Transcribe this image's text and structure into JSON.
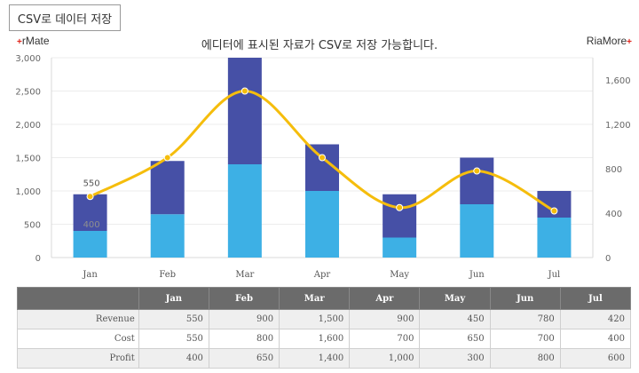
{
  "toolbar": {
    "csv_button_label": "CSV로 데이터 저장"
  },
  "brand": {
    "left_text": "rMate",
    "right_text": "RiaMore",
    "plus_glyph": "+",
    "plus_color": "#e0251b"
  },
  "chart_title": "에디터에 표시된 자료가 CSV로 저장 가능합니다.",
  "chart_data": {
    "type": "bar",
    "categories": [
      "Jan",
      "Feb",
      "Mar",
      "Apr",
      "May",
      "Jun",
      "Jul"
    ],
    "stacked": true,
    "series": [
      {
        "name": "Profit",
        "axis": "left",
        "type": "bar",
        "color": "#3db0e5",
        "values": [
          400,
          650,
          1400,
          1000,
          300,
          800,
          600
        ]
      },
      {
        "name": "Cost",
        "axis": "left",
        "type": "bar",
        "color": "#4650a6",
        "values": [
          550,
          800,
          1600,
          700,
          650,
          700,
          400
        ]
      },
      {
        "name": "Revenue",
        "axis": "right",
        "type": "line",
        "curve": "smooth",
        "color": "#f5bd0c",
        "values": [
          550,
          900,
          1500,
          900,
          450,
          780,
          420
        ]
      }
    ],
    "y_left": {
      "min": 0,
      "max": 3000,
      "ticks": [
        0,
        500,
        1000,
        1500,
        2000,
        2500,
        3000
      ],
      "tick_labels": [
        "0",
        "500",
        "1,000",
        "1,500",
        "2,000",
        "2,500",
        "3,000"
      ]
    },
    "y_right": {
      "min": 0,
      "max": 1800,
      "ticks": [
        0,
        400,
        800,
        1200,
        1600
      ],
      "tick_labels": [
        "0",
        "400",
        "800",
        "1,200",
        "1,600"
      ]
    },
    "annotations": [
      {
        "category": "Jan",
        "text": "550",
        "color": "#555555"
      },
      {
        "category": "Jan",
        "text": "400",
        "color": "#8f8f8f"
      }
    ],
    "grid": true,
    "legend": "none"
  },
  "table": {
    "headers": [
      "",
      "Jan",
      "Feb",
      "Mar",
      "Apr",
      "May",
      "Jun",
      "Jul"
    ],
    "rows": [
      {
        "label": "Revenue",
        "cells": [
          "550",
          "900",
          "1,500",
          "900",
          "450",
          "780",
          "420"
        ]
      },
      {
        "label": "Cost",
        "cells": [
          "550",
          "800",
          "1,600",
          "700",
          "650",
          "700",
          "400"
        ]
      },
      {
        "label": "Profit",
        "cells": [
          "400",
          "650",
          "1,400",
          "1,000",
          "300",
          "800",
          "600"
        ]
      }
    ]
  }
}
